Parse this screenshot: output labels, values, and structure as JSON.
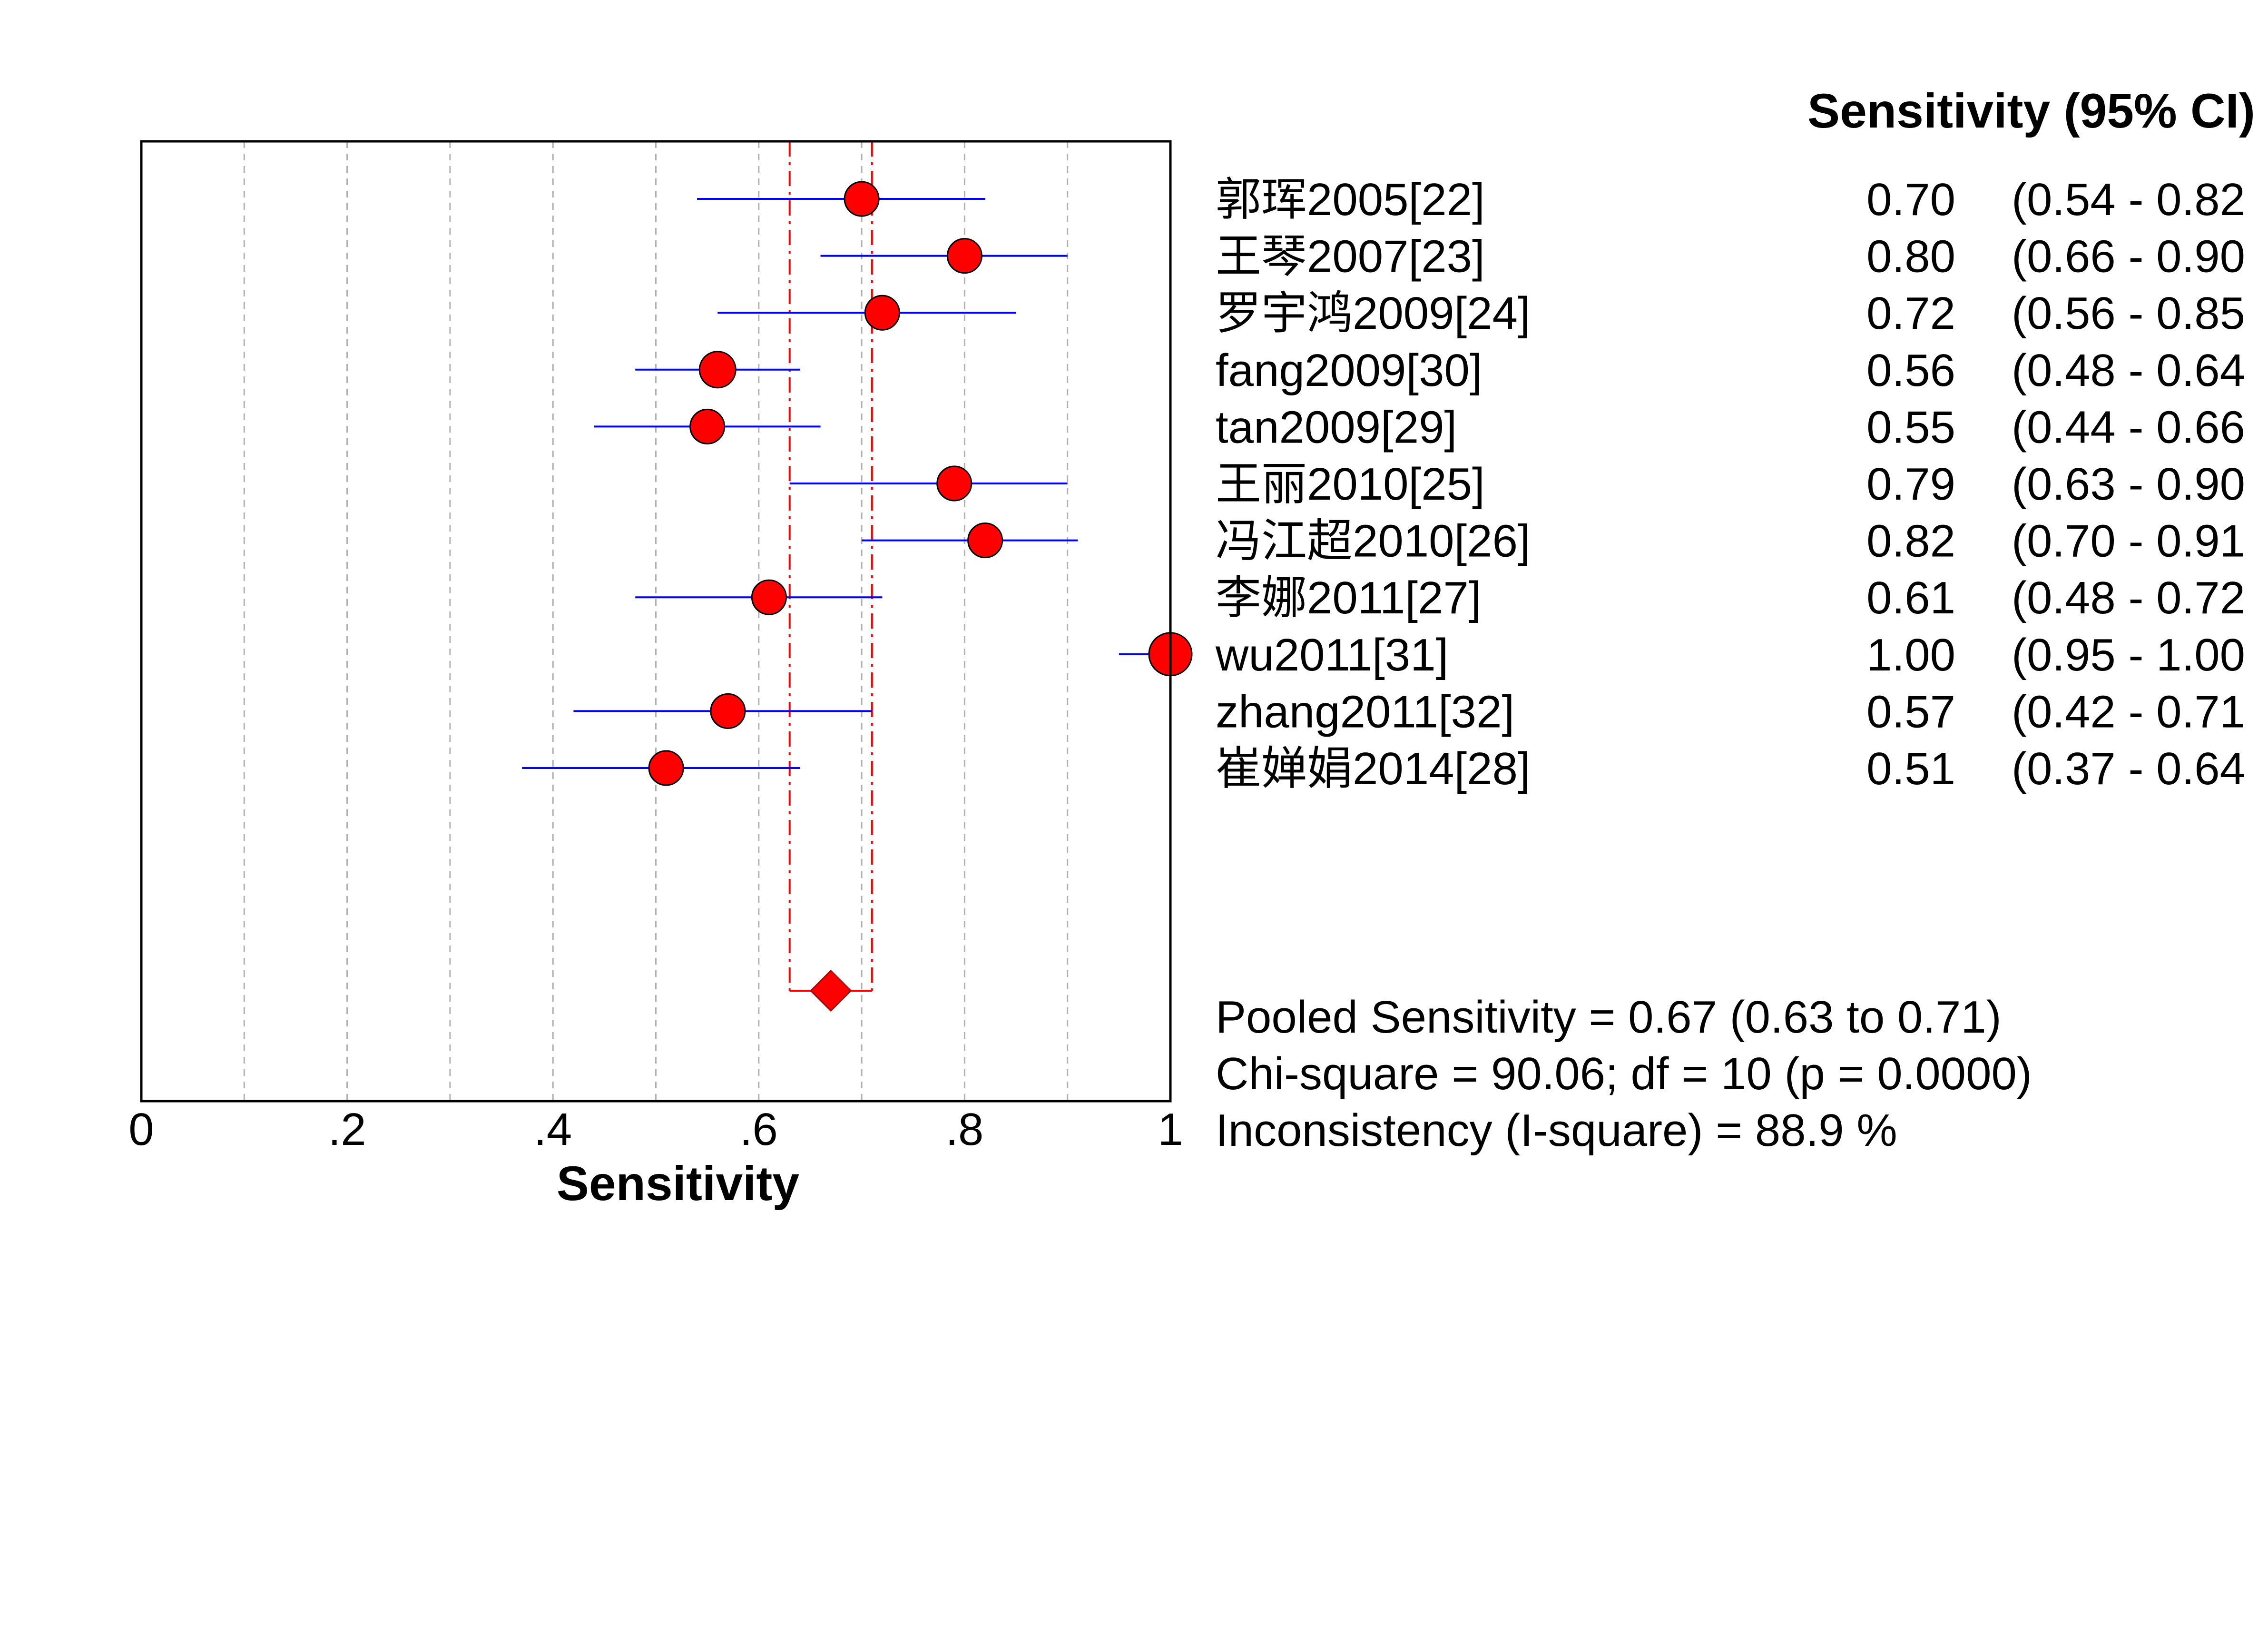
{
  "chart_data": {
    "type": "forest",
    "xlabel": "Sensitivity",
    "xlim": [
      0,
      1
    ],
    "xticks": [
      "0",
      ".2",
      ".4",
      ".6",
      ".8",
      "1"
    ],
    "column_header": "Sensitivity (95% CI)",
    "studies": [
      {
        "label": "郭珲2005[22]",
        "value": 0.7,
        "lo": 0.54,
        "hi": 0.82,
        "value_text": "0.70",
        "ci_text": "(0.54 - 0.82"
      },
      {
        "label": "王琴2007[23]",
        "value": 0.8,
        "lo": 0.66,
        "hi": 0.9,
        "value_text": "0.80",
        "ci_text": "(0.66 - 0.90"
      },
      {
        "label": "罗宇鸿2009[24]",
        "value": 0.72,
        "lo": 0.56,
        "hi": 0.85,
        "value_text": "0.72",
        "ci_text": "(0.56 - 0.85"
      },
      {
        "label": "fang2009[30]",
        "value": 0.56,
        "lo": 0.48,
        "hi": 0.64,
        "value_text": "0.56",
        "ci_text": "(0.48 - 0.64"
      },
      {
        "label": "tan2009[29]",
        "value": 0.55,
        "lo": 0.44,
        "hi": 0.66,
        "value_text": "0.55",
        "ci_text": "(0.44 - 0.66"
      },
      {
        "label": "王丽2010[25]",
        "value": 0.79,
        "lo": 0.63,
        "hi": 0.9,
        "value_text": "0.79",
        "ci_text": "(0.63 - 0.90"
      },
      {
        "label": "冯江超2010[26]",
        "value": 0.82,
        "lo": 0.7,
        "hi": 0.91,
        "value_text": "0.82",
        "ci_text": "(0.70 - 0.91"
      },
      {
        "label": "李娜2011[27]",
        "value": 0.61,
        "lo": 0.48,
        "hi": 0.72,
        "value_text": "0.61",
        "ci_text": "(0.48 - 0.72"
      },
      {
        "label": "wu2011[31]",
        "value": 1.0,
        "lo": 0.95,
        "hi": 1.0,
        "value_text": "1.00",
        "ci_text": "(0.95 - 1.00"
      },
      {
        "label": "zhang2011[32]",
        "value": 0.57,
        "lo": 0.42,
        "hi": 0.71,
        "value_text": "0.57",
        "ci_text": "(0.42 - 0.71"
      },
      {
        "label": "崔婵娟2014[28]",
        "value": 0.51,
        "lo": 0.37,
        "hi": 0.64,
        "value_text": "0.51",
        "ci_text": "(0.37 - 0.64"
      }
    ],
    "pooled": {
      "value": 0.67,
      "lo": 0.63,
      "hi": 0.71
    },
    "stats": [
      "Pooled Sensitivity = 0.67 (0.63 to 0.71)",
      "Chi-square = 90.06; df =  10 (p = 0.0000)",
      "Inconsistency (I-square) = 88.9 %"
    ],
    "grid": "vertical dotted",
    "colors": {
      "marker": "#ff0000",
      "ci_line": "#0000ff",
      "pooled_line": "#ff0000",
      "frame": "#000000",
      "grid": "#b0b0b0"
    }
  }
}
